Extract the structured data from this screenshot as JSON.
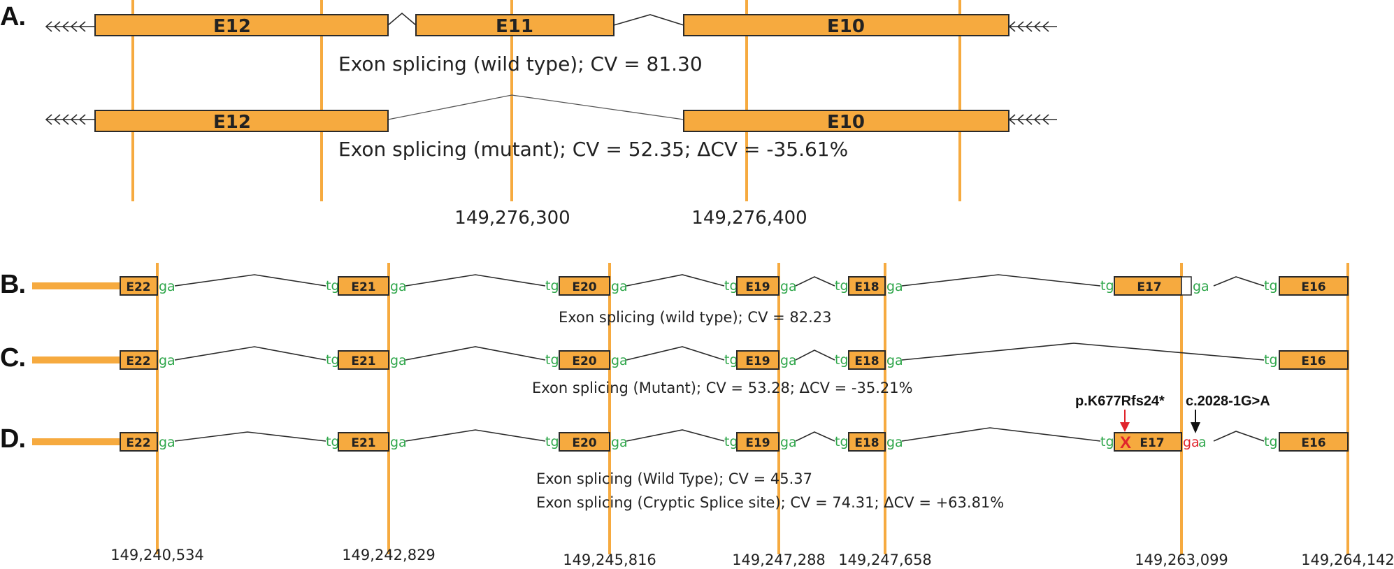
{
  "panels": {
    "a": {
      "letter": "A.",
      "exons": {
        "e12": "E12",
        "e11": "E11",
        "e10": "E10"
      },
      "caption_wild": "Exon splicing (wild type); CV = 81.30",
      "caption_mutant": "Exon splicing (mutant); CV = 52.35; ΔCV = -35.61%",
      "coords": [
        "149,276,300",
        "149,276,400"
      ]
    },
    "b": {
      "letter": "B.",
      "exons": [
        "E22",
        "E21",
        "E20",
        "E19",
        "E18",
        "E17",
        "E16"
      ],
      "caption": "Exon splicing (wild type); CV = 82.23"
    },
    "c": {
      "letter": "C.",
      "exons": [
        "E22",
        "E21",
        "E20",
        "E19",
        "E18",
        "E16"
      ],
      "caption": "Exon splicing (Mutant); CV = 53.28; ΔCV = -35.21%"
    },
    "d": {
      "letter": "D.",
      "exons": [
        "E22",
        "E21",
        "E20",
        "E19",
        "E18",
        "E17",
        "E16"
      ],
      "caption_wild": "Exon splicing (Wild Type); CV = 45.37",
      "caption_cryptic": "Exon splicing (Cryptic Splice site); CV = 74.31; ΔCV = +63.81%",
      "annotation_protein": "p.K677Rfs24*",
      "annotation_variant": "c.2028-1G>A",
      "mutation_mark": "X"
    }
  },
  "splice_sites": {
    "donor": "ga",
    "acceptor": "tg",
    "mutant_donor_prefix": "ga",
    "mutant_donor_suffix": "a"
  },
  "coordinates": [
    "149,240,534",
    "149,242,829",
    "149,245,816",
    "149,247,288",
    "149,247,658",
    "149,263,099",
    "149,264,142"
  ],
  "colors": {
    "exon": "#F6AA3F",
    "site": "#2EA64A",
    "mutation": "#E0242C",
    "outline": "#2a2a2a"
  }
}
